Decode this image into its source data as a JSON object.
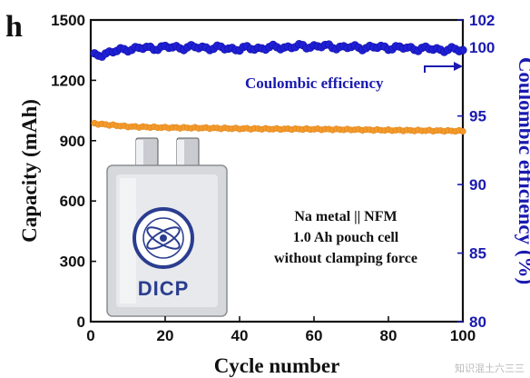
{
  "chart_data": {
    "type": "scatter",
    "panel_label": "h",
    "xlabel": "Cycle number",
    "ylabel_left": "Capacity (mAh)",
    "ylabel_right": "Coulombic efficiency (%)",
    "xlim": [
      0,
      100
    ],
    "ylim_left": [
      0,
      1500
    ],
    "ylim_right": [
      80,
      102
    ],
    "x_ticks": [
      0,
      20,
      40,
      60,
      80,
      100
    ],
    "y_ticks_left": [
      0,
      300,
      600,
      900,
      1200,
      1500
    ],
    "y_ticks_right": [
      80,
      85,
      90,
      95,
      100,
      102
    ],
    "series": [
      {
        "name": "Capacity",
        "axis": "left",
        "color": "#f39a2b",
        "x": [
          1,
          10,
          20,
          30,
          40,
          50,
          60,
          70,
          80,
          90,
          100
        ],
        "y": [
          985,
          970,
          965,
          963,
          960,
          958,
          957,
          955,
          952,
          950,
          948
        ]
      },
      {
        "name": "Coulombic efficiency",
        "axis": "right",
        "color": "#1f1fd6",
        "x": [
          1,
          10,
          20,
          30,
          40,
          50,
          60,
          70,
          80,
          90,
          100
        ],
        "y": [
          99.4,
          99.9,
          100.0,
          100.0,
          99.9,
          100.0,
          100.1,
          100.0,
          100.0,
          99.9,
          99.8
        ]
      }
    ],
    "annotations": {
      "ce_label": "Coulombic efficiency",
      "cell_lines": [
        "Na metal || NFM",
        "1.0 Ah  pouch cell",
        "without clamping force"
      ],
      "logo_text": "DICP"
    }
  },
  "watermark": "知识混土六三三"
}
